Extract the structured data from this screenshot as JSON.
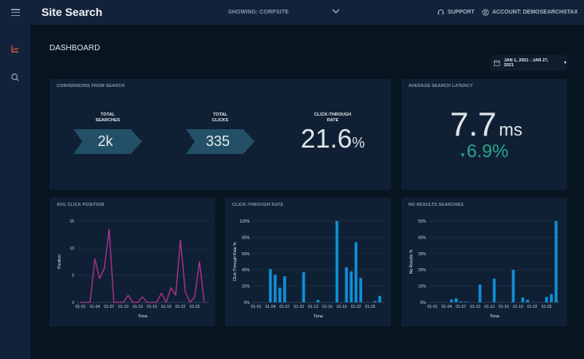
{
  "header": {
    "app_title": "Site Search",
    "showing": "SHOWING: CORPSITE",
    "support": "SUPPORT",
    "account": "ACCOUNT: DEMOSEARCHSTAX"
  },
  "sidebar": {
    "items": [
      {
        "icon": "chart-line-icon",
        "active": true
      },
      {
        "icon": "search-icon",
        "active": false
      }
    ]
  },
  "page": {
    "title": "DASHBOARD",
    "date_range": "JAN 1, 2021 - JAN 27, 2021"
  },
  "colors": {
    "accent_active": "#d0553a",
    "chevron_fill": "#235066",
    "line": "#b2338f",
    "bar": "#0e8fd6",
    "delta_green": "#2aa58a"
  },
  "conversions": {
    "title": "CONVERSIONS FROM SEARCH",
    "total_searches_label_1": "TOTAL",
    "total_searches_label_2": "SEARCHES",
    "total_searches": "2k",
    "total_clicks_label_1": "TOTAL",
    "total_clicks_label_2": "CLICKS",
    "total_clicks": "335",
    "ctr_label_1": "CLICK-THROUGH",
    "ctr_label_2": "RATE",
    "ctr_value": "21.6",
    "ctr_unit": "%"
  },
  "latency": {
    "title": "AVERAGE SEARCH LATENCY",
    "value": "7.7",
    "unit": "ms",
    "delta": "6.9%",
    "delta_direction": "down"
  },
  "chart_data": [
    {
      "type": "line",
      "title": "AVG CLICK POSITION",
      "xlabel": "Time",
      "ylabel": "Position",
      "ylim": [
        0,
        15
      ],
      "yticks": [
        "0",
        "5",
        "10",
        "15"
      ],
      "xticks": [
        "01-01",
        "01-04",
        "01-07",
        "01-10",
        "01-13",
        "01-16",
        "01-19",
        "01-22",
        "01-25"
      ],
      "x": [
        "01-01",
        "01-02",
        "01-03",
        "01-04",
        "01-05",
        "01-06",
        "01-07",
        "01-08",
        "01-09",
        "01-10",
        "01-11",
        "01-12",
        "01-13",
        "01-14",
        "01-15",
        "01-16",
        "01-17",
        "01-18",
        "01-19",
        "01-20",
        "01-21",
        "01-22",
        "01-23",
        "01-24",
        "01-25",
        "01-26",
        "01-27"
      ],
      "values": [
        0,
        0,
        0,
        8,
        4.4,
        6.3,
        13.5,
        0,
        0,
        0,
        1.3,
        0,
        0,
        1,
        0,
        0,
        0,
        1.7,
        0,
        2.7,
        1.3,
        11.5,
        2,
        0,
        1,
        7.5,
        0
      ],
      "grid": true
    },
    {
      "type": "bar",
      "title": "CLICK-THROUGH RATE",
      "xlabel": "Time",
      "ylabel": "Click-Through Rate %",
      "ylim": [
        0,
        100
      ],
      "yticks": [
        "0%",
        "20%",
        "40%",
        "60%",
        "80%",
        "100%"
      ],
      "xticks": [
        "01-01",
        "01-04",
        "01-07",
        "01-10",
        "01-13",
        "01-16",
        "01-19",
        "01-22",
        "01-25"
      ],
      "x": [
        "01-01",
        "01-02",
        "01-03",
        "01-04",
        "01-05",
        "01-06",
        "01-07",
        "01-08",
        "01-09",
        "01-10",
        "01-11",
        "01-12",
        "01-13",
        "01-14",
        "01-15",
        "01-16",
        "01-17",
        "01-18",
        "01-19",
        "01-20",
        "01-21",
        "01-22",
        "01-23",
        "01-24",
        "01-25",
        "01-26",
        "01-27"
      ],
      "values": [
        0,
        0,
        0,
        41,
        34,
        18,
        32,
        0,
        0,
        0,
        37,
        0,
        0,
        3,
        0,
        0,
        0,
        100,
        0,
        43,
        38,
        74,
        30,
        0,
        0,
        1.5,
        8
      ],
      "grid": true
    },
    {
      "type": "bar",
      "title": "NO RESULTS SEARCHES",
      "xlabel": "Time",
      "ylabel": "No Results %",
      "ylim": [
        0,
        50
      ],
      "yticks": [
        "0%",
        "10%",
        "20%",
        "30%",
        "40%",
        "50%"
      ],
      "xticks": [
        "01-01",
        "01-04",
        "01-07",
        "01-10",
        "01-13",
        "01-16",
        "01-19",
        "01-22",
        "01-25"
      ],
      "x": [
        "01-01",
        "01-02",
        "01-03",
        "01-04",
        "01-05",
        "01-06",
        "01-07",
        "01-08",
        "01-09",
        "01-10",
        "01-11",
        "01-12",
        "01-13",
        "01-14",
        "01-15",
        "01-16",
        "01-17",
        "01-18",
        "01-19",
        "01-20",
        "01-21",
        "01-22",
        "01-23",
        "01-24",
        "01-25",
        "01-26",
        "01-27"
      ],
      "values": [
        0,
        0,
        0,
        0,
        1.8,
        2.5,
        0.6,
        0.4,
        0,
        0,
        11,
        0,
        0,
        14.5,
        0,
        0,
        0,
        20,
        0,
        3,
        1.6,
        0,
        0,
        0,
        3.3,
        5,
        50
      ],
      "grid": true
    }
  ]
}
